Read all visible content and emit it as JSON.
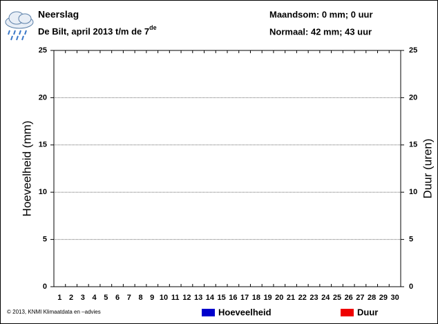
{
  "chart_data": {
    "type": "bar",
    "title": "Neerslag",
    "subtitle": "De Bilt, april 2013 t/m de 7",
    "subtitle_sup": "de",
    "summary": "Maandsom: 0 mm; 0 uur",
    "normal": "Normaal: 42 mm; 43 uur",
    "footer": "© 2013, KNMI Klimaatdata en –advies",
    "ylabel": "Hoeveelheid (mm)",
    "y2label": "Duur (uren)",
    "categories": [
      "1",
      "2",
      "3",
      "4",
      "5",
      "6",
      "7",
      "8",
      "9",
      "10",
      "11",
      "12",
      "13",
      "14",
      "15",
      "16",
      "17",
      "18",
      "19",
      "20",
      "21",
      "22",
      "23",
      "24",
      "25",
      "26",
      "27",
      "28",
      "29",
      "30"
    ],
    "series": [
      {
        "name": "Hoeveelheid",
        "color": "#0000cc",
        "values": [
          0,
          0,
          0,
          0,
          0,
          0,
          0,
          null,
          null,
          null,
          null,
          null,
          null,
          null,
          null,
          null,
          null,
          null,
          null,
          null,
          null,
          null,
          null,
          null,
          null,
          null,
          null,
          null,
          null,
          null
        ]
      },
      {
        "name": "Duur",
        "color": "#ee0000",
        "axis": "y2",
        "values": [
          0,
          0,
          0,
          0,
          0,
          0,
          0,
          null,
          null,
          null,
          null,
          null,
          null,
          null,
          null,
          null,
          null,
          null,
          null,
          null,
          null,
          null,
          null,
          null,
          null,
          null,
          null,
          null,
          null,
          null
        ]
      }
    ],
    "ylim": [
      0,
      25
    ],
    "yticks": [
      0,
      5,
      10,
      15,
      20,
      25
    ],
    "y2lim": [
      0,
      25
    ],
    "y2ticks": [
      0,
      5,
      10,
      15,
      20,
      25
    ],
    "grid": true
  }
}
